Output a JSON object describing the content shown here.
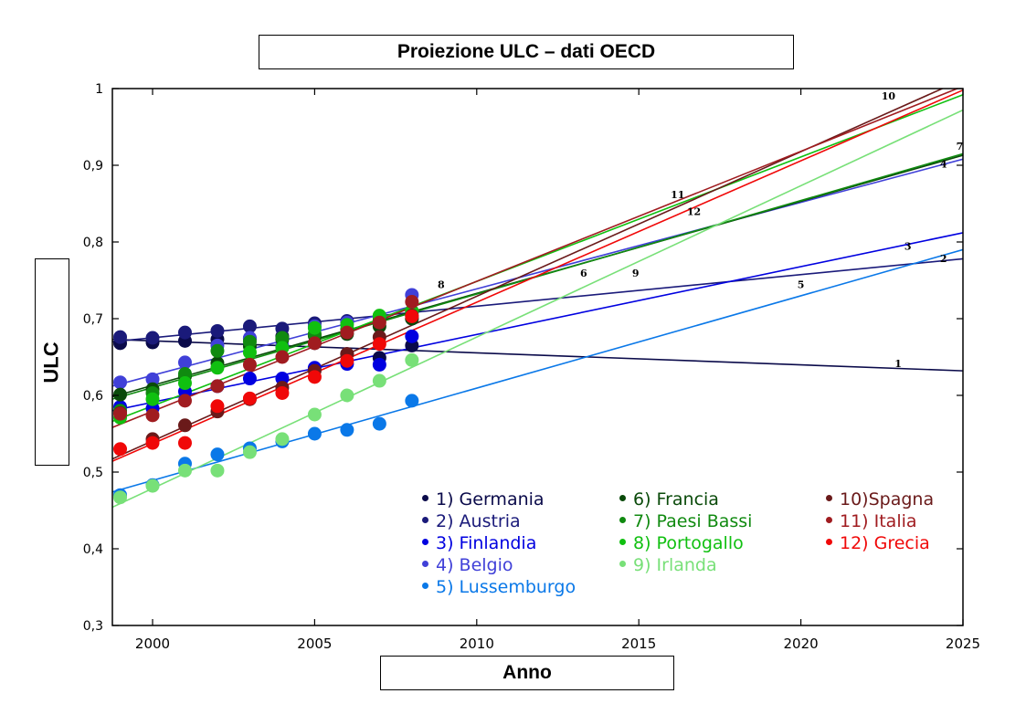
{
  "chart_data": {
    "type": "scatter",
    "title": "Proiezione ULC – dati OECD",
    "xlabel": "Anno",
    "ylabel": "ULC",
    "xlim": [
      1998.75,
      2025
    ],
    "ylim": [
      0.3,
      1.0
    ],
    "xticks": [
      2000,
      2005,
      2010,
      2015,
      2020,
      2025
    ],
    "xtick_labels": [
      "2000",
      "2005",
      "2010",
      "2015",
      "2020",
      "2025"
    ],
    "yticks": [
      0.3,
      0.4,
      0.5,
      0.6,
      0.7,
      0.8,
      0.9,
      1.0
    ],
    "ytick_labels": [
      "0,3",
      "0,4",
      "0,5",
      "0,6",
      "0,7",
      "0,8",
      "0,9",
      "1"
    ],
    "grid": false,
    "legend_position": "bottom-center-inside",
    "x": [
      1999,
      2000,
      2001,
      2002,
      2003,
      2004,
      2005,
      2006,
      2007,
      2008
    ],
    "series": [
      {
        "id": "1",
        "name": "1) Germania",
        "color": "#0a0a4a",
        "values": [
          0.668,
          0.669,
          0.671,
          0.673,
          0.674,
          0.677,
          0.668,
          0.654,
          0.649,
          0.665
        ],
        "trend": {
          "x0": 1998.75,
          "y0": 0.673,
          "x1": 2025,
          "y1": 0.632
        },
        "label_x": 2023,
        "label_y": 0.637
      },
      {
        "id": "2",
        "name": "2) Austria",
        "color": "#1a1a7a",
        "values": [
          0.676,
          0.675,
          0.682,
          0.684,
          0.69,
          0.687,
          0.694,
          0.697,
          0.702,
          0.7
        ],
        "trend": {
          "x0": 1998.75,
          "y0": 0.67,
          "x1": 2025,
          "y1": 0.778
        },
        "label_x": 2024.4,
        "label_y": 0.774
      },
      {
        "id": "3",
        "name": "3) Finlandia",
        "color": "#0000e0",
        "values": [
          0.585,
          0.583,
          0.605,
          0.612,
          0.622,
          0.622,
          0.636,
          0.641,
          0.64,
          0.677
        ],
        "trend": {
          "x0": 1998.75,
          "y0": 0.58,
          "x1": 2025,
          "y1": 0.812
        },
        "label_x": 2023.3,
        "label_y": 0.79
      },
      {
        "id": "4",
        "name": "4) Belgio",
        "color": "#4040d8",
        "values": [
          0.617,
          0.621,
          0.643,
          0.665,
          0.675,
          0.665,
          0.69,
          0.695,
          0.703,
          0.731
        ],
        "trend": {
          "x0": 1998.75,
          "y0": 0.612,
          "x1": 2025,
          "y1": 0.908
        },
        "label_x": 2024.4,
        "label_y": 0.897
      },
      {
        "id": "5",
        "name": "5) Lussemburgo",
        "color": "#0a78e8",
        "values": [
          0.47,
          0.483,
          0.511,
          0.523,
          0.531,
          0.54,
          0.55,
          0.555,
          0.563,
          0.593
        ],
        "trend": {
          "x0": 1998.75,
          "y0": 0.474,
          "x1": 2025,
          "y1": 0.79
        },
        "label_x": 2020,
        "label_y": 0.74
      },
      {
        "id": "6",
        "name": "6) Francia",
        "color": "#0a4a0a",
        "values": [
          0.601,
          0.608,
          0.625,
          0.642,
          0.664,
          0.673,
          0.678,
          0.68,
          0.69,
          0.7
        ],
        "trend": {
          "x0": 1998.75,
          "y0": 0.598,
          "x1": 2025,
          "y1": 0.913
        },
        "label_x": 2013.3,
        "label_y": 0.755
      },
      {
        "id": "7",
        "name": "7) Paesi Bassi",
        "color": "#108a10",
        "values": [
          0.58,
          0.603,
          0.628,
          0.658,
          0.67,
          0.675,
          0.68,
          0.686,
          0.698,
          0.708
        ],
        "trend": {
          "x0": 1998.75,
          "y0": 0.595,
          "x1": 2025,
          "y1": 0.915
        },
        "label_x": 2024.9,
        "label_y": 0.92
      },
      {
        "id": "8",
        "name": "8) Portogallo",
        "color": "#10c010",
        "values": [
          0.571,
          0.595,
          0.616,
          0.636,
          0.656,
          0.662,
          0.688,
          0.692,
          0.704,
          0.71
        ],
        "trend": {
          "x0": 1998.75,
          "y0": 0.566,
          "x1": 2025,
          "y1": 0.992
        },
        "label_x": 2008.9,
        "label_y": 0.74
      },
      {
        "id": "9",
        "name": "9) Irlanda",
        "color": "#78e078",
        "values": [
          0.467,
          0.482,
          0.502,
          0.502,
          0.526,
          0.543,
          0.575,
          0.6,
          0.619,
          0.646
        ],
        "trend": {
          "x0": 1998.75,
          "y0": 0.454,
          "x1": 2025,
          "y1": 0.972
        },
        "label_x": 2014.9,
        "label_y": 0.755
      },
      {
        "id": "10",
        "name": "10)Spagna",
        "color": "#6a1a1a",
        "values": [
          0.577,
          0.543,
          0.561,
          0.579,
          0.595,
          0.61,
          0.632,
          0.654,
          0.676,
          0.704
        ],
        "trend": {
          "x0": 1998.75,
          "y0": 0.517,
          "x1": 2025,
          "y1": 1.012
        },
        "label_x": 2022.7,
        "label_y": 0.986
      },
      {
        "id": "11",
        "name": "11) Italia",
        "color": "#a01c20",
        "values": [
          0.576,
          0.574,
          0.593,
          0.612,
          0.64,
          0.65,
          0.668,
          0.682,
          0.695,
          0.722
        ],
        "trend": {
          "x0": 1998.75,
          "y0": 0.558,
          "x1": 2025,
          "y1": 1.003
        },
        "label_x": 2016.2,
        "label_y": 0.857
      },
      {
        "id": "12",
        "name": "12) Grecia",
        "color": "#f00808",
        "values": [
          0.53,
          0.538,
          0.538,
          0.586,
          0.596,
          0.603,
          0.624,
          0.645,
          0.667,
          0.703
        ],
        "trend": {
          "x0": 1998.75,
          "y0": 0.514,
          "x1": 2025,
          "y1": 0.998
        },
        "label_x": 2016.7,
        "label_y": 0.835
      }
    ],
    "annotations": [
      "1",
      "2",
      "3",
      "4",
      "5",
      "6",
      "7",
      "8",
      "9",
      "10",
      "11",
      "12"
    ]
  },
  "legend": {
    "columns": [
      [
        "1",
        "2",
        "3",
        "4",
        "5"
      ],
      [
        "6",
        "7",
        "8",
        "9"
      ],
      [
        "10",
        "11",
        "12"
      ]
    ]
  },
  "labels": {
    "title": "Proiezione ULC – dati OECD",
    "ylabel": "ULC",
    "xlabel": "Anno"
  }
}
